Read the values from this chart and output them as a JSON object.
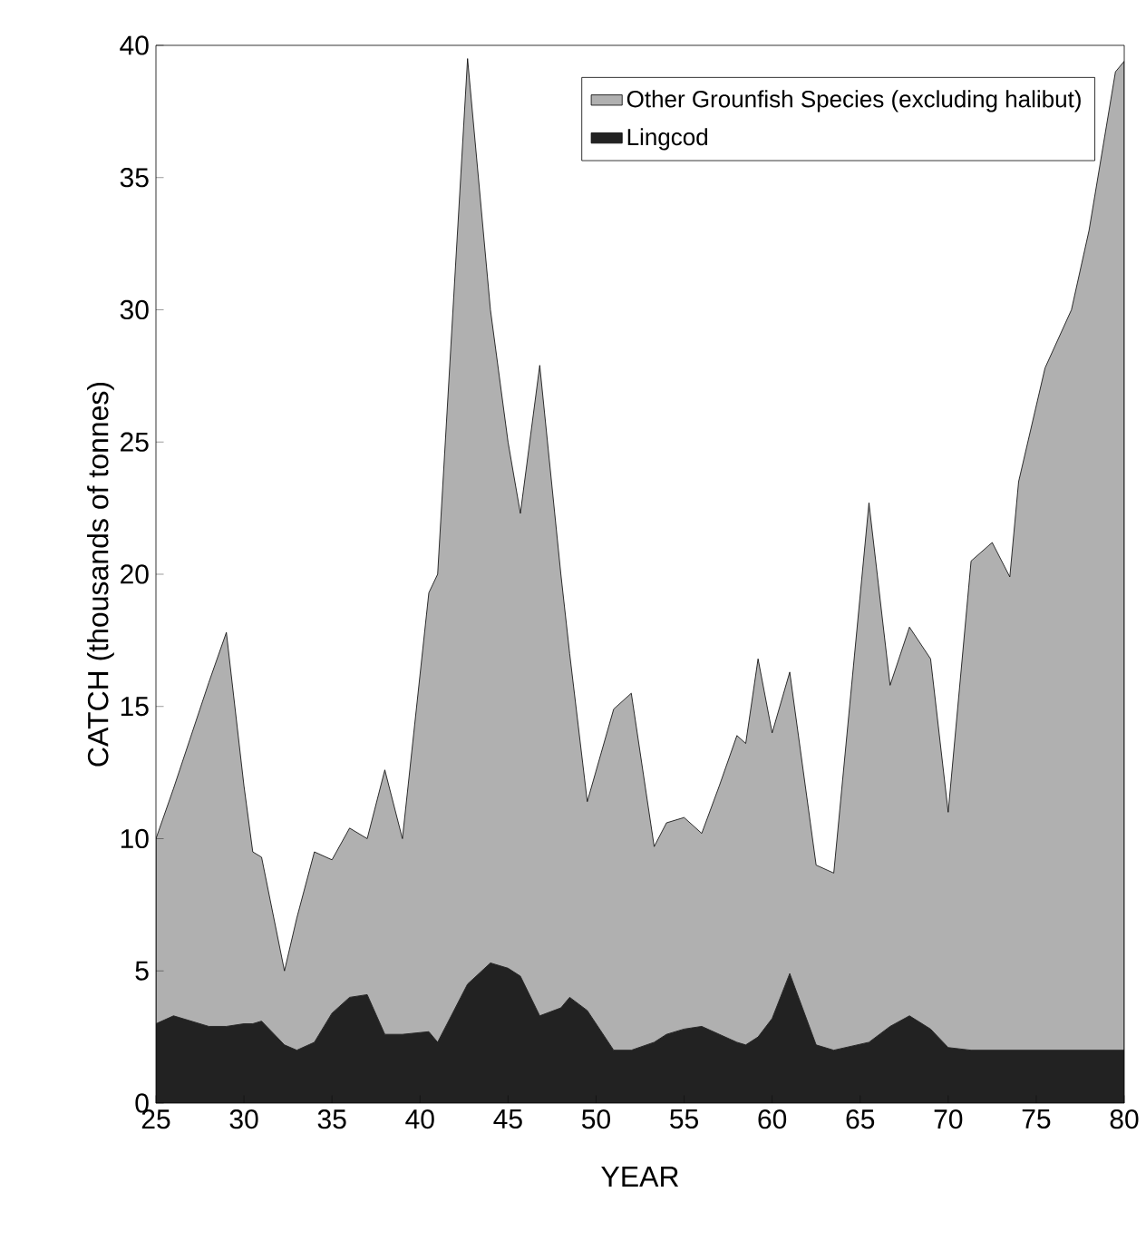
{
  "chart_data": {
    "type": "area",
    "stacked": true,
    "xlabel": "YEAR",
    "ylabel": "CATCH (thousands of tonnes)",
    "x": [
      25,
      26,
      28,
      29,
      30,
      30.5,
      31,
      32.3,
      33,
      34,
      35,
      36,
      37,
      38,
      39,
      40.5,
      41,
      42.7,
      44,
      45,
      45.7,
      46.8,
      48,
      48.5,
      49.5,
      51,
      52,
      53.3,
      54,
      55,
      56,
      57,
      58,
      58.5,
      59.2,
      60,
      61,
      62.5,
      63.5,
      65.5,
      66.7,
      67.8,
      69,
      70,
      71.3,
      72.5,
      73.5,
      74,
      75.5,
      77,
      78,
      79.5,
      80
    ],
    "series": [
      {
        "name": "Lingcod",
        "color": "#222222",
        "values": [
          3.0,
          3.3,
          2.9,
          2.9,
          3.0,
          3.0,
          3.1,
          2.2,
          2.0,
          2.3,
          3.4,
          4.0,
          4.1,
          2.6,
          2.6,
          2.7,
          2.3,
          4.5,
          5.3,
          5.1,
          4.8,
          3.3,
          3.6,
          4.0,
          3.5,
          2.0,
          2.0,
          2.3,
          2.6,
          2.8,
          2.9,
          2.6,
          2.3,
          2.2,
          2.5,
          3.2,
          4.9,
          2.2,
          2.0,
          2.3,
          2.9,
          3.3,
          2.8,
          2.1,
          2.0,
          2.0,
          2.0,
          2.0,
          2.0,
          2.0,
          2.0,
          2.0,
          2.0
        ]
      },
      {
        "name": "Other Grounfish Species (excluding halibut)",
        "color": "#b0b0b0",
        "values": [
          7.0,
          8.6,
          13.0,
          14.9,
          9.0,
          6.5,
          6.2,
          2.8,
          5.0,
          7.2,
          5.8,
          6.4,
          5.9,
          10.0,
          7.4,
          16.6,
          17.7,
          35.0,
          24.7,
          19.9,
          17.5,
          24.6,
          16.4,
          13.0,
          7.9,
          12.9,
          13.5,
          7.4,
          8.0,
          8.0,
          7.3,
          9.4,
          11.6,
          11.4,
          14.3,
          10.8,
          11.4,
          6.8,
          6.7,
          20.4,
          12.9,
          14.7,
          14.0,
          8.9,
          18.5,
          19.2,
          17.9,
          21.5,
          25.8,
          28.0,
          31.0,
          37.0,
          37.4
        ]
      }
    ],
    "xlim": [
      25,
      80
    ],
    "ylim": [
      0,
      40
    ],
    "xticks": [
      25,
      30,
      35,
      40,
      45,
      50,
      55,
      60,
      65,
      70,
      75,
      80
    ],
    "yticks": [
      0,
      5,
      10,
      15,
      20,
      25,
      30,
      35,
      40
    ],
    "legend": "top right"
  }
}
